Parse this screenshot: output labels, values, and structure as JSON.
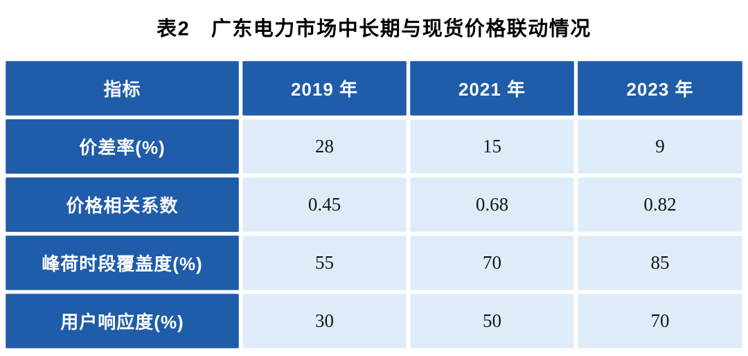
{
  "title": "表2　广东电力市场中长期与现货价格联动情况",
  "table": {
    "columns": [
      "指标",
      "2019 年",
      "2021 年",
      "2023 年"
    ],
    "rows": [
      {
        "label": "价差率(%)",
        "values": [
          "28",
          "15",
          "9"
        ]
      },
      {
        "label": "价格相关系数",
        "values": [
          "0.45",
          "0.68",
          "0.82"
        ]
      },
      {
        "label": "峰荷时段覆盖度(%)",
        "values": [
          "55",
          "70",
          "85"
        ]
      },
      {
        "label": "用户响应度(%)",
        "values": [
          "30",
          "50",
          "70"
        ]
      }
    ]
  },
  "colors": {
    "header_bg": "#1f5ca9",
    "label_bg": "#1f5ca9",
    "data_cell_bg": "#deecf9",
    "gutter": "#ffffff",
    "header_text": "#ffffff",
    "data_text": "#141414",
    "title_text": "#000000"
  }
}
